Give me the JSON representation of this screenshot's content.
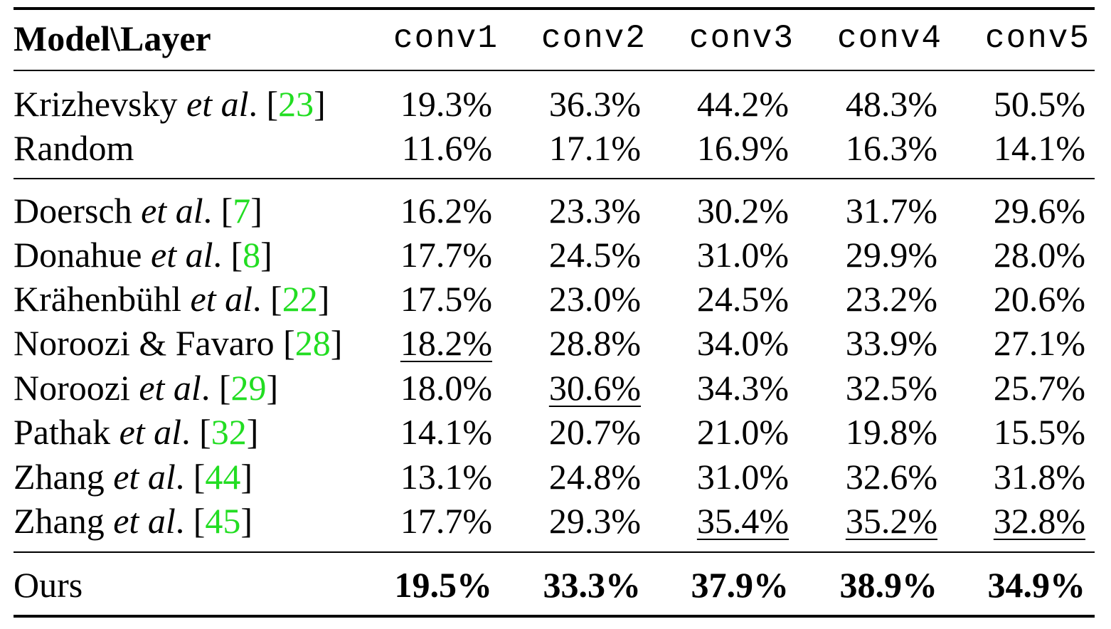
{
  "table": {
    "header": {
      "model_layer": "Model\\Layer",
      "layers": [
        "conv1",
        "conv2",
        "conv3",
        "conv4",
        "conv5"
      ]
    },
    "groups": [
      {
        "rows": [
          {
            "name": "Krizhevsky",
            "etal": "et al",
            "ref": "23",
            "values": [
              "19.3%",
              "36.3%",
              "44.2%",
              "48.3%",
              "50.5%"
            ]
          },
          {
            "name": "Random",
            "etal": "",
            "ref": "",
            "values": [
              "11.6%",
              "17.1%",
              "16.9%",
              "16.3%",
              "14.1%"
            ]
          }
        ]
      },
      {
        "rows": [
          {
            "name": "Doersch",
            "etal": "et al",
            "ref": "7",
            "values": [
              "16.2%",
              "23.3%",
              "30.2%",
              "31.7%",
              "29.6%"
            ]
          },
          {
            "name": "Donahue",
            "etal": "et al",
            "ref": "8",
            "values": [
              "17.7%",
              "24.5%",
              "31.0%",
              "29.9%",
              "28.0%"
            ]
          },
          {
            "name": "Krähenbühl",
            "etal": "et al",
            "ref": "22",
            "values": [
              "17.5%",
              "23.0%",
              "24.5%",
              "23.2%",
              "20.6%"
            ]
          },
          {
            "name": "Noroozi & Favaro",
            "etal": "",
            "ref": "28",
            "values": [
              "18.2%",
              "28.8%",
              "34.0%",
              "33.9%",
              "27.1%"
            ],
            "underline": [
              0
            ]
          },
          {
            "name": "Noroozi",
            "etal": "et al",
            "ref": "29",
            "values": [
              "18.0%",
              "30.6%",
              "34.3%",
              "32.5%",
              "25.7%"
            ],
            "underline": [
              1
            ]
          },
          {
            "name": "Pathak",
            "etal": "et al",
            "ref": "32",
            "values": [
              "14.1%",
              "20.7%",
              "21.0%",
              "19.8%",
              "15.5%"
            ]
          },
          {
            "name": "Zhang",
            "etal": "et al",
            "ref": "44",
            "values": [
              "13.1%",
              "24.8%",
              "31.0%",
              "32.6%",
              "31.8%"
            ]
          },
          {
            "name": "Zhang",
            "etal": "et al",
            "ref": "45",
            "values": [
              "17.7%",
              "29.3%",
              "35.4%",
              "35.2%",
              "32.8%"
            ],
            "underline": [
              2,
              3,
              4
            ]
          }
        ]
      },
      {
        "rows": [
          {
            "name": "Ours",
            "etal": "",
            "ref": "",
            "values": [
              "19.5%",
              "33.3%",
              "37.9%",
              "38.9%",
              "34.9%"
            ],
            "bold": true
          }
        ]
      }
    ],
    "colors": {
      "reference": "#22dd22",
      "text": "#000000"
    }
  }
}
